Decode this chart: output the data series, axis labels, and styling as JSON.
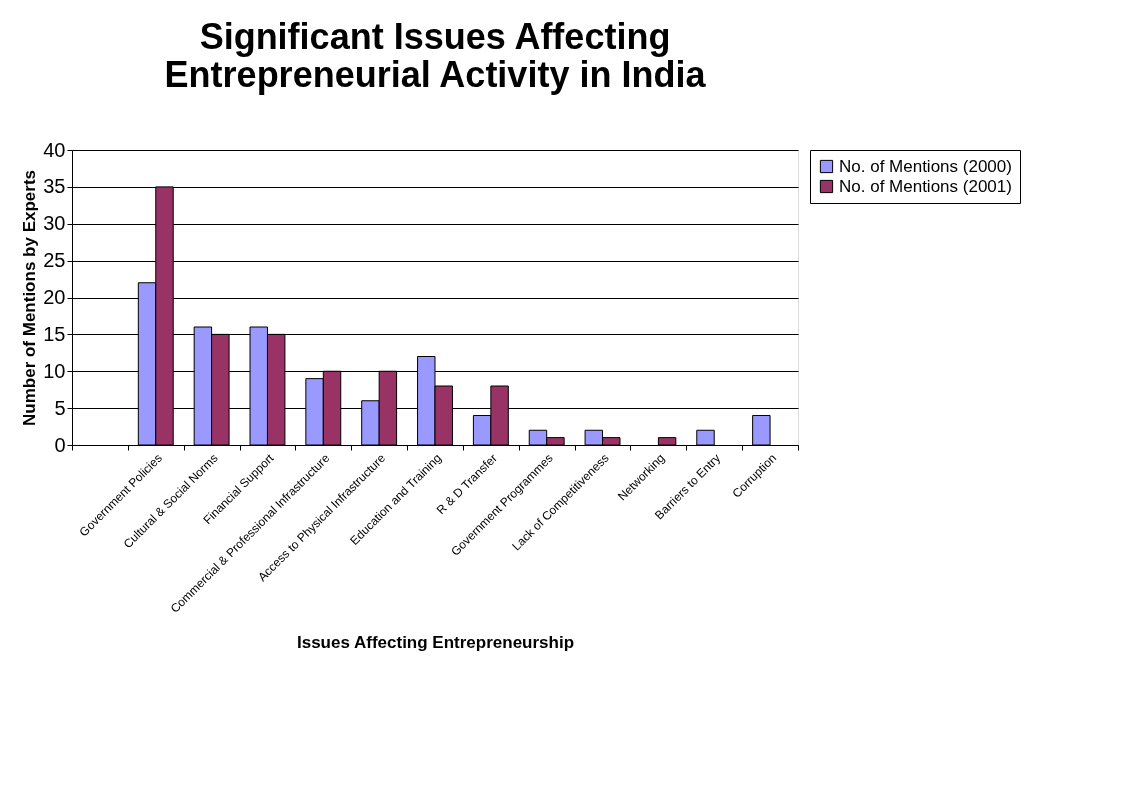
{
  "chart_data": {
    "type": "bar",
    "title": [
      "Significant Issues Affecting",
      "Entrepreneurial Activity in India"
    ],
    "xlabel": "Issues Affecting Entrepreneurship",
    "ylabel": "Number of Mentions by Experts",
    "categories": [
      null,
      "Government Policies",
      "Cultural & Social Norms",
      "Financial Support",
      "Commercial & Professional Infrastructure",
      "Access to Physical Infrastructure",
      "Education and Training",
      "R & D Transfer",
      "Government Programmes",
      "Lack of Competitiveness",
      "Networking",
      "Barriers to Entry",
      "Corruption"
    ],
    "series": [
      {
        "name": "No. of Mentions (2000)",
        "color": "#9999ff",
        "values": [
          null,
          22,
          16,
          16,
          9,
          6,
          12,
          4,
          2,
          2,
          null,
          2,
          4
        ]
      },
      {
        "name": "No. of Mentions (2001)",
        "color": "#993366",
        "values": [
          null,
          35,
          15,
          15,
          10,
          10,
          8,
          8,
          1,
          1,
          1,
          null,
          null
        ]
      }
    ],
    "ylim": [
      0,
      40
    ],
    "yticks": [
      0,
      5,
      10,
      15,
      20,
      25,
      30,
      35,
      40
    ],
    "grid": "y",
    "legend": "right"
  }
}
